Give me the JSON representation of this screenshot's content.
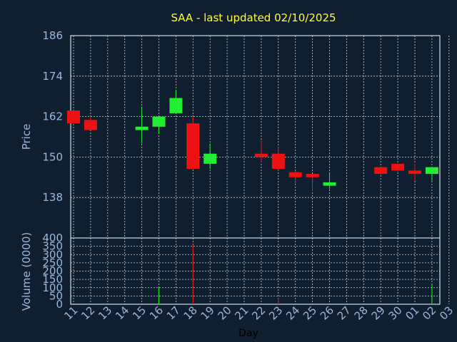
{
  "title": "SAA - last updated 02/10/2025",
  "colors": {
    "background": "#0f1f30",
    "frame": "#ffffff",
    "grid": "#cfcfcf",
    "title": "#ffff33",
    "tick_text": "#9ab8d8",
    "up": "#22ee33",
    "down": "#ee1111"
  },
  "chart_data": [
    {
      "type": "candlestick",
      "ylabel": "Price",
      "ylim": [
        126,
        186
      ],
      "yticks": [
        "186",
        "174",
        "162",
        "150",
        "138"
      ],
      "ytick_values": [
        186,
        174,
        162,
        150,
        138
      ],
      "grid": true,
      "candles": [
        {
          "x": "11",
          "open": 163.8,
          "high": 163.8,
          "low": 160.0,
          "close": 160.0
        },
        {
          "x": "12",
          "open": 161.0,
          "high": 162.0,
          "low": 158.0,
          "close": 158.0
        },
        {
          "x": "15",
          "open": 158.0,
          "high": 165.0,
          "low": 154.0,
          "close": 159.0
        },
        {
          "x": "16",
          "open": 159.0,
          "high": 162.0,
          "low": 157.0,
          "close": 162.0
        },
        {
          "x": "17",
          "open": 163.0,
          "high": 170.0,
          "low": 163.0,
          "close": 167.5
        },
        {
          "x": "18",
          "open": 160.0,
          "high": 162.0,
          "low": 146.5,
          "close": 146.5
        },
        {
          "x": "19",
          "open": 148.0,
          "high": 154.0,
          "low": 146.5,
          "close": 151.0
        },
        {
          "x": "22",
          "open": 151.0,
          "high": 155.0,
          "low": 148.5,
          "close": 150.0
        },
        {
          "x": "23",
          "open": 151.0,
          "high": 153.0,
          "low": 146.0,
          "close": 146.5
        },
        {
          "x": "24",
          "open": 145.5,
          "high": 146.0,
          "low": 142.0,
          "close": 144.0
        },
        {
          "x": "25",
          "open": 145.0,
          "high": 145.0,
          "low": 140.0,
          "close": 144.0
        },
        {
          "x": "26",
          "open": 141.5,
          "high": 145.5,
          "low": 140.5,
          "close": 142.5
        },
        {
          "x": "29",
          "open": 147.0,
          "high": 147.0,
          "low": 144.5,
          "close": 145.0
        },
        {
          "x": "30",
          "open": 148.0,
          "high": 148.0,
          "low": 145.5,
          "close": 146.0
        },
        {
          "x": "01",
          "open": 146.0,
          "high": 148.0,
          "low": 143.0,
          "close": 145.0
        },
        {
          "x": "02",
          "open": 145.0,
          "high": 147.0,
          "low": 143.0,
          "close": 147.0
        }
      ]
    },
    {
      "type": "bar",
      "ylabel": "Volume (0000)",
      "xlabel": "Day",
      "ylim": [
        0,
        400
      ],
      "yticks": [
        "400",
        "350",
        "300",
        "250",
        "200",
        "150",
        "100",
        "50",
        "0"
      ],
      "ytick_values": [
        400,
        350,
        300,
        250,
        200,
        150,
        100,
        50,
        0
      ],
      "grid": true,
      "categories": [
        "11",
        "12",
        "13",
        "14",
        "15",
        "16",
        "17",
        "18",
        "19",
        "20",
        "21",
        "22",
        "23",
        "24",
        "25",
        "26",
        "27",
        "28",
        "29",
        "30",
        "01",
        "02",
        "03"
      ],
      "bars": [
        {
          "x": "16",
          "value": 100,
          "color": "up"
        },
        {
          "x": "18",
          "value": 360,
          "color": "down"
        },
        {
          "x": "23",
          "value": 35,
          "color": "down"
        },
        {
          "x": "02",
          "value": 120,
          "color": "up"
        }
      ]
    }
  ]
}
